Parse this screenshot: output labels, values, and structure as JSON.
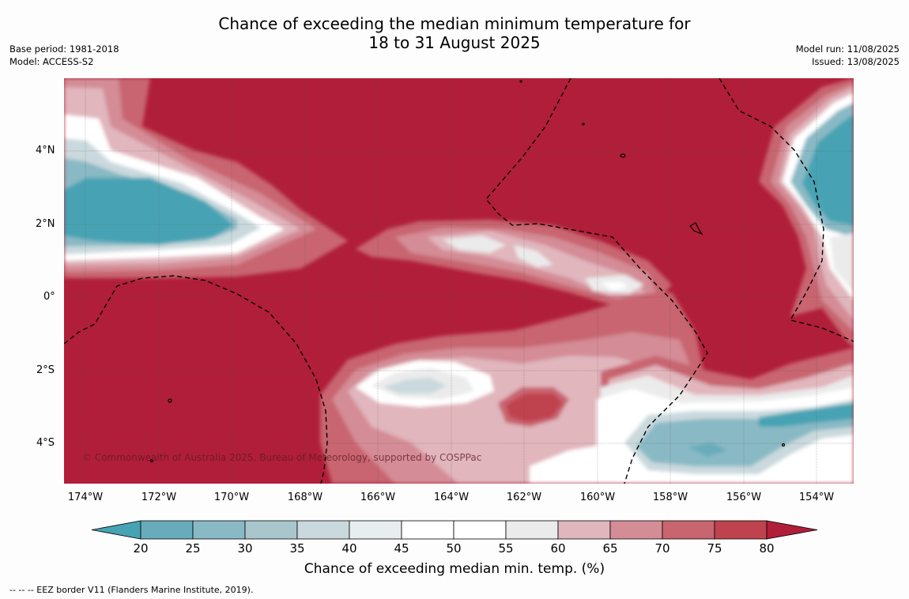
{
  "title_line1": "Chance of exceeding the median minimum temperature for",
  "title_line2": "18 to 31 August 2025",
  "base_period": "Base period: 1981-2018",
  "model": "Model: ACCESS-S2",
  "model_run": "Model run: 11/08/2025",
  "issued": "Issued: 13/08/2025",
  "lat_labels": [
    "4°N",
    "2°N",
    "0°",
    "2°S",
    "4°S"
  ],
  "lon_labels": [
    "174°W",
    "172°W",
    "170°W",
    "168°W",
    "166°W",
    "164°W",
    "162°W",
    "160°W",
    "158°W",
    "156°W",
    "154°W"
  ],
  "copyright": "© Commonwealth of Australia 2025, Bureau of Meteorology, supported by COSPPac",
  "colorbar": {
    "title": "Chance of exceeding median min. temp. (%)",
    "ticks": [
      "20",
      "25",
      "30",
      "35",
      "40",
      "45",
      "50",
      "55",
      "60",
      "65",
      "70",
      "75",
      "80"
    ],
    "colors": [
      "#46a3b3",
      "#68acbb",
      "#89b9c4",
      "#a9c6cd",
      "#cad9dd",
      "#e8eeef",
      "#ffffff",
      "#ffffff",
      "#ebebeb",
      "#e1b6bd",
      "#d48c96",
      "#c8656f",
      "#bf434f",
      "#b11e39"
    ]
  },
  "footnote": "--  --  -- EEZ border V11 (Flanders Marine Institute, 2019)."
}
